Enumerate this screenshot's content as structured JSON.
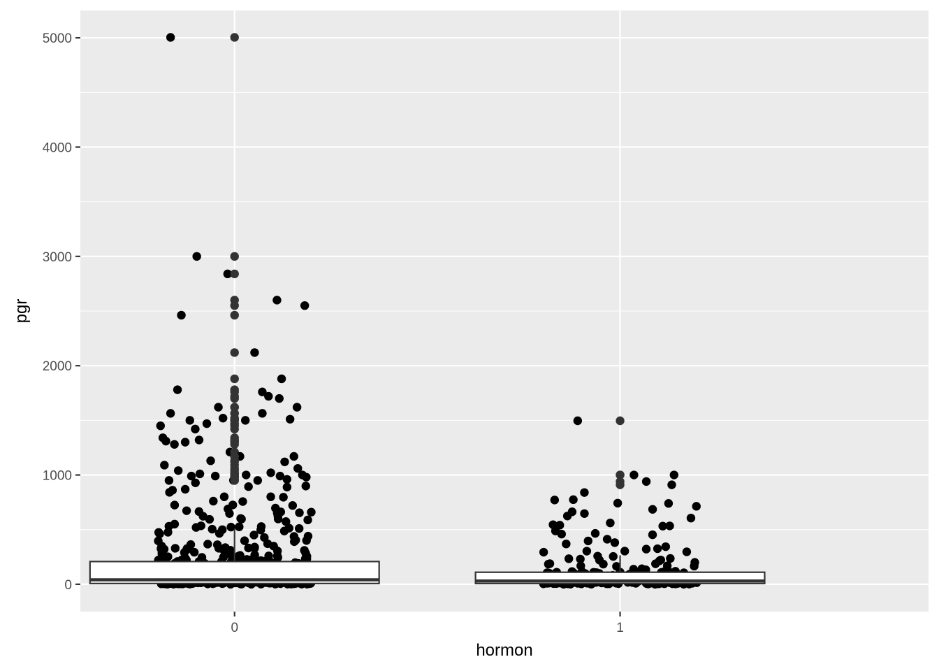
{
  "chart_data": {
    "type": "boxplot+jitter",
    "xlabel": "hormon",
    "ylabel": "pgr",
    "categories": [
      "0",
      "1"
    ],
    "yticks": [
      0,
      1000,
      2000,
      3000,
      4000,
      5000
    ],
    "ylim": [
      -250,
      5250
    ],
    "grid": true,
    "colors": {
      "panel": "#ebebeb",
      "grid": "#ffffff",
      "points": "#000000",
      "box_fill": "#ffffff",
      "box_line": "#333333",
      "tick_text": "#4d4d4d"
    },
    "boxes": [
      {
        "category": "0",
        "q1": 7,
        "median": 41,
        "q3": 208,
        "n_points": 440
      },
      {
        "category": "1",
        "q1": 7,
        "median": 30,
        "q3": 110,
        "n_points": 246
      }
    ],
    "outliers": [
      {
        "category": "0",
        "points": [
          {
            "dx": -0.166,
            "y": 5004
          },
          {
            "dx": -0.098,
            "y": 3000
          },
          {
            "dx": -0.018,
            "y": 2840
          },
          {
            "dx": -0.138,
            "y": 2462
          },
          {
            "dx": 0.11,
            "y": 2600
          },
          {
            "dx": 0.182,
            "y": 2550
          },
          {
            "dx": 0.052,
            "y": 2120
          },
          {
            "dx": 0.122,
            "y": 1880
          },
          {
            "dx": -0.148,
            "y": 1780
          },
          {
            "dx": 0.072,
            "y": 1760
          },
          {
            "dx": 0.088,
            "y": 1720
          },
          {
            "dx": 0.116,
            "y": 1700
          },
          {
            "dx": -0.166,
            "y": 1564
          },
          {
            "dx": 0.072,
            "y": 1564
          },
          {
            "dx": -0.042,
            "y": 1620
          },
          {
            "dx": 0.162,
            "y": 1620
          },
          {
            "dx": -0.192,
            "y": 1450
          },
          {
            "dx": 0.028,
            "y": 1500
          },
          {
            "dx": -0.116,
            "y": 1500
          },
          {
            "dx": -0.072,
            "y": 1470
          },
          {
            "dx": 0.144,
            "y": 1510
          },
          {
            "dx": -0.03,
            "y": 1520
          },
          {
            "dx": -0.102,
            "y": 1420
          },
          {
            "dx": -0.186,
            "y": 1340
          },
          {
            "dx": -0.178,
            "y": 1310
          },
          {
            "dx": -0.156,
            "y": 1280
          },
          {
            "dx": -0.128,
            "y": 1300
          },
          {
            "dx": -0.092,
            "y": 1320
          },
          {
            "dx": -0.012,
            "y": 1210
          },
          {
            "dx": 0.014,
            "y": 1170
          },
          {
            "dx": 0.13,
            "y": 1120
          },
          {
            "dx": 0.154,
            "y": 1170
          },
          {
            "dx": -0.182,
            "y": 1090
          },
          {
            "dx": -0.062,
            "y": 1130
          },
          {
            "dx": 0.094,
            "y": 1020
          },
          {
            "dx": 0.118,
            "y": 990
          },
          {
            "dx": 0.176,
            "y": 1000
          },
          {
            "dx": 0.186,
            "y": 980
          },
          {
            "dx": -0.112,
            "y": 990
          },
          {
            "dx": -0.09,
            "y": 1010
          },
          {
            "dx": -0.05,
            "y": 990
          },
          {
            "dx": 0.03,
            "y": 1000
          },
          {
            "dx": 0.06,
            "y": 950
          },
          {
            "dx": -0.17,
            "y": 950
          },
          {
            "dx": -0.146,
            "y": 1040
          },
          {
            "dx": 0.136,
            "y": 960
          },
          {
            "dx": 0.164,
            "y": 1060
          }
        ]
      },
      {
        "category": "1",
        "points": [
          {
            "dx": -0.11,
            "y": 1496
          },
          {
            "dx": 0.036,
            "y": 1000
          },
          {
            "dx": 0.14,
            "y": 1000
          },
          {
            "dx": 0.068,
            "y": 940
          },
          {
            "dx": 0.134,
            "y": 910
          }
        ]
      }
    ]
  }
}
